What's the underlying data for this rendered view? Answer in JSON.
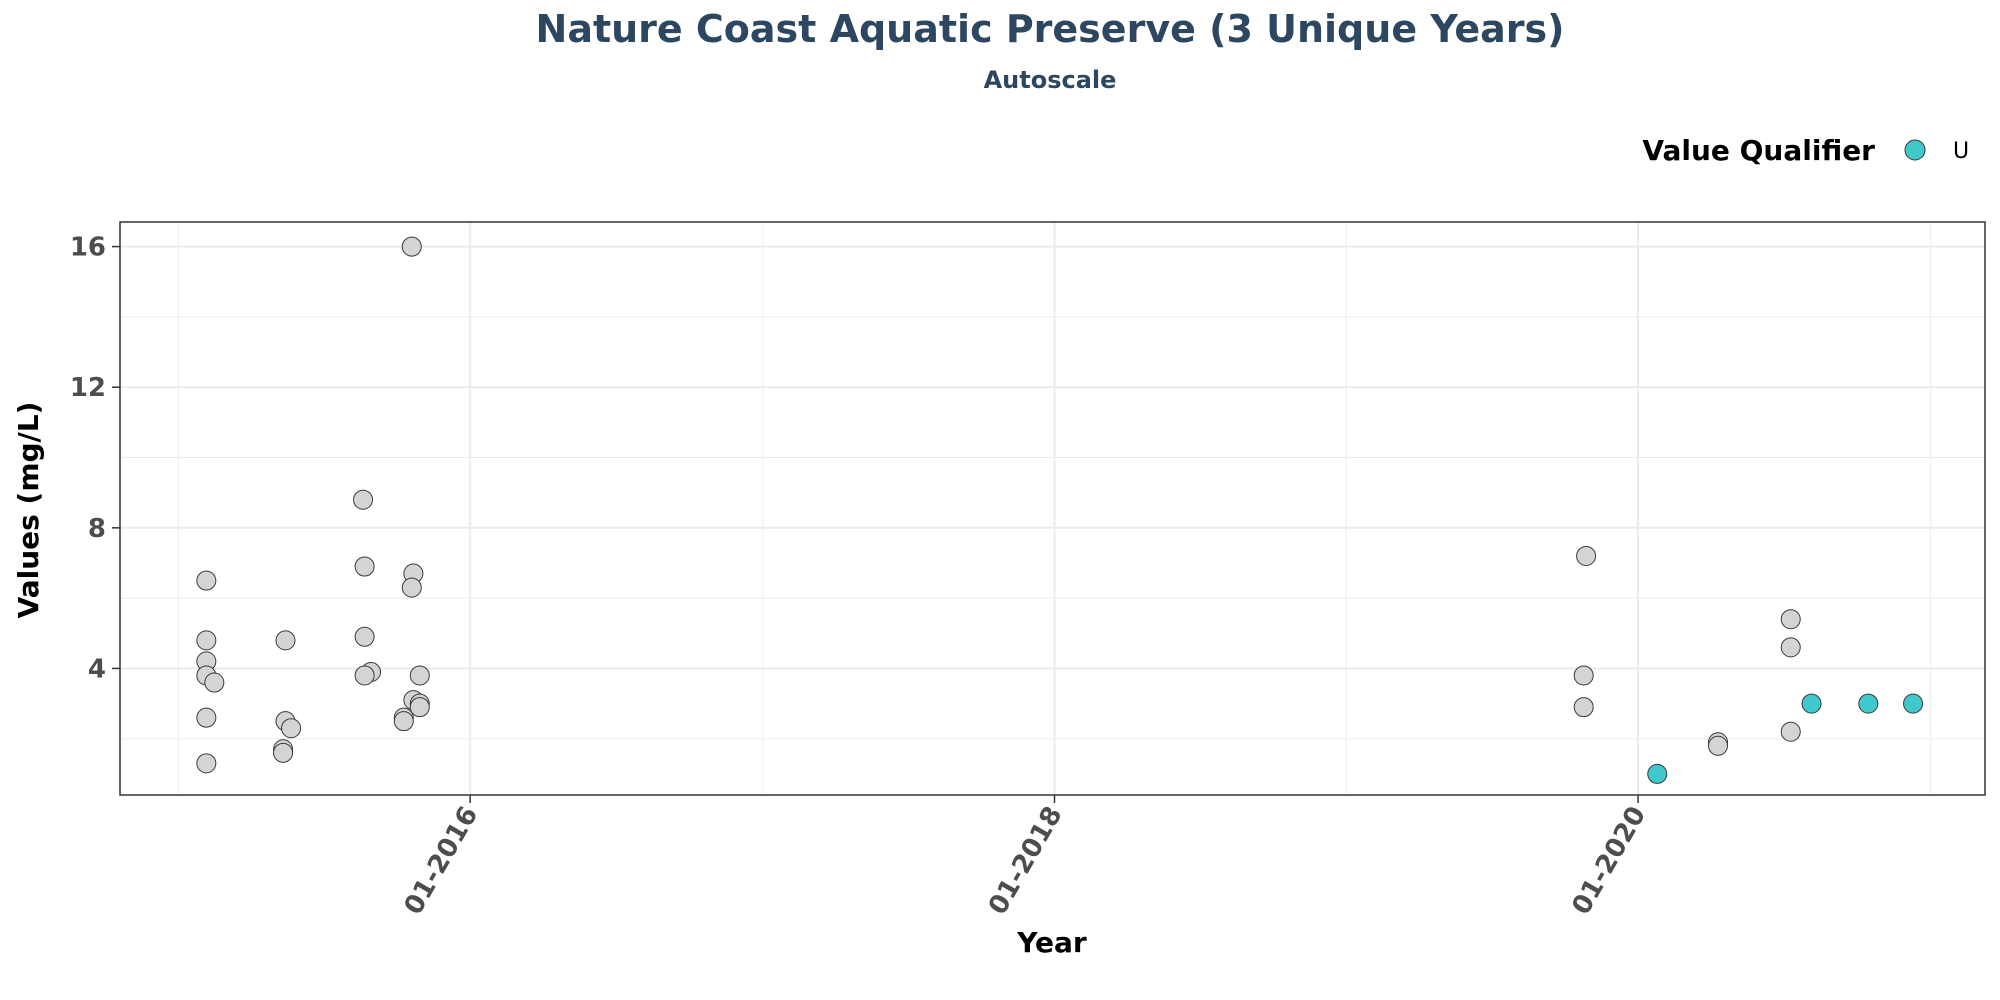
{
  "chart_data": {
    "type": "scatter",
    "title": "Nature Coast Aquatic Preserve (3 Unique Years)",
    "subtitle": "Autoscale",
    "xlabel": "Year",
    "ylabel": "Values (mg/L)",
    "x_tick_labels": [
      "01-2016",
      "01-2018",
      "01-2020"
    ],
    "x_tick_dates": [
      "2016-01-01",
      "2018-01-01",
      "2020-01-01"
    ],
    "xlim": [
      "2014-10-20",
      "2021-03-10"
    ],
    "y_ticks": [
      4,
      8,
      12,
      16
    ],
    "ylim": [
      0.4,
      16.7
    ],
    "grid": true,
    "legend": {
      "title": "Value Qualifier",
      "position": "top-right",
      "entries": [
        {
          "label": "U",
          "color": "#3fc9cd"
        }
      ]
    },
    "colors": {
      "default_point": "#d4d4d4",
      "qualifier_U": "#3fc9cd",
      "title": "#2e4760",
      "grid": "#ebebeb"
    },
    "series": [
      {
        "qualifier": "",
        "points": [
          {
            "x": "2015-02-05",
            "y": 6.5
          },
          {
            "x": "2015-02-05",
            "y": 4.8
          },
          {
            "x": "2015-02-05",
            "y": 4.2
          },
          {
            "x": "2015-02-05",
            "y": 3.8
          },
          {
            "x": "2015-02-15",
            "y": 3.6
          },
          {
            "x": "2015-02-05",
            "y": 2.6
          },
          {
            "x": "2015-02-05",
            "y": 1.3
          },
          {
            "x": "2015-05-15",
            "y": 4.8
          },
          {
            "x": "2015-05-15",
            "y": 2.5
          },
          {
            "x": "2015-05-22",
            "y": 2.3
          },
          {
            "x": "2015-05-12",
            "y": 1.7
          },
          {
            "x": "2015-05-12",
            "y": 1.6
          },
          {
            "x": "2015-08-20",
            "y": 8.8
          },
          {
            "x": "2015-08-22",
            "y": 6.9
          },
          {
            "x": "2015-08-22",
            "y": 4.9
          },
          {
            "x": "2015-08-30",
            "y": 3.9
          },
          {
            "x": "2015-08-22",
            "y": 3.8
          },
          {
            "x": "2015-10-20",
            "y": 16.0
          },
          {
            "x": "2015-10-22",
            "y": 6.7
          },
          {
            "x": "2015-10-20",
            "y": 6.3
          },
          {
            "x": "2015-10-30",
            "y": 3.8
          },
          {
            "x": "2015-10-22",
            "y": 3.1
          },
          {
            "x": "2015-10-30",
            "y": 3.0
          },
          {
            "x": "2015-10-30",
            "y": 2.9
          },
          {
            "x": "2015-10-10",
            "y": 2.6
          },
          {
            "x": "2015-10-10",
            "y": 2.5
          },
          {
            "x": "2019-10-28",
            "y": 7.2
          },
          {
            "x": "2019-10-25",
            "y": 3.8
          },
          {
            "x": "2019-10-25",
            "y": 2.9
          },
          {
            "x": "2020-04-10",
            "y": 1.9
          },
          {
            "x": "2020-04-10",
            "y": 1.8
          },
          {
            "x": "2020-07-10",
            "y": 5.4
          },
          {
            "x": "2020-07-10",
            "y": 4.6
          },
          {
            "x": "2020-07-10",
            "y": 2.2
          }
        ]
      },
      {
        "qualifier": "U",
        "points": [
          {
            "x": "2020-01-25",
            "y": 1.0
          },
          {
            "x": "2020-08-05",
            "y": 3.0
          },
          {
            "x": "2020-10-15",
            "y": 3.0
          },
          {
            "x": "2020-12-10",
            "y": 3.0
          }
        ]
      }
    ]
  }
}
